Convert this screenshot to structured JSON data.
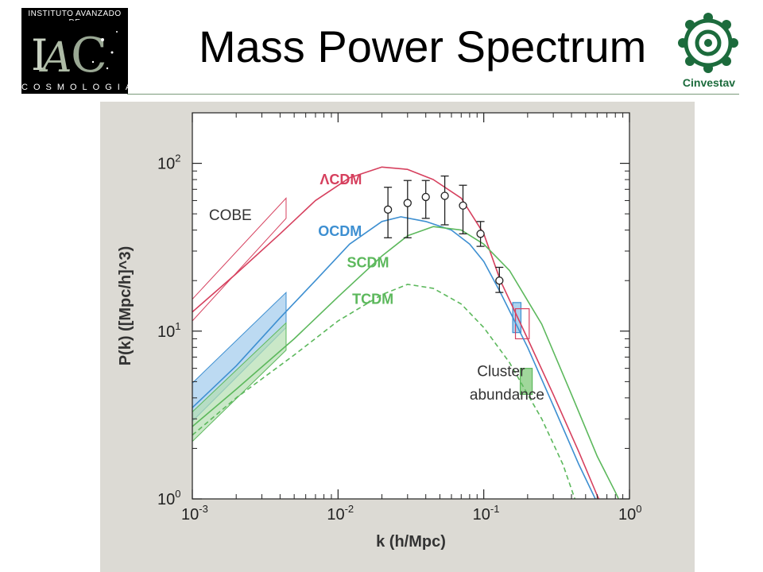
{
  "slide": {
    "title": "Mass Power Spectrum",
    "logo_left_top": "INSTITUTO AVANZADO DE",
    "logo_left_bottom": "COSMOLOGIA",
    "logo_right_label": "Cinvestav"
  },
  "colors": {
    "lcdm": "#d6405e",
    "ocdm": "#3d8fd1",
    "scdm": "#5cb85c",
    "tcdm": "#5cb85c",
    "cinvestav_green": "#1c6b3c",
    "figure_bg": "#dcdad4"
  },
  "chart_data": {
    "type": "line",
    "title": "",
    "xlabel": "k (h/Mpc)",
    "ylabel": "P(k) ([Mpc/h]^3)",
    "xscale": "log",
    "yscale": "log",
    "xlim": [
      0.001,
      1.0
    ],
    "ylim": [
      1.0,
      200
    ],
    "xticks": [
      {
        "value": 0.001,
        "label_base": "10",
        "label_exp": "-3"
      },
      {
        "value": 0.01,
        "label_base": "10",
        "label_exp": "-2"
      },
      {
        "value": 0.1,
        "label_base": "10",
        "label_exp": "-1"
      },
      {
        "value": 1.0,
        "label_base": "10",
        "label_exp": "0"
      }
    ],
    "yticks": [
      {
        "value": 1,
        "label_base": "10",
        "label_exp": "0"
      },
      {
        "value": 10,
        "label_base": "10",
        "label_exp": "1"
      },
      {
        "value": 100,
        "label_base": "10",
        "label_exp": "2"
      }
    ],
    "series": [
      {
        "name": "ΛCDM",
        "color": "#d6405e",
        "dash": false,
        "points": [
          [
            0.001,
            13.0
          ],
          [
            0.002,
            22
          ],
          [
            0.004,
            38
          ],
          [
            0.007,
            60
          ],
          [
            0.012,
            82
          ],
          [
            0.02,
            95
          ],
          [
            0.03,
            92
          ],
          [
            0.045,
            80
          ],
          [
            0.07,
            62
          ],
          [
            0.1,
            38
          ],
          [
            0.13,
            20
          ],
          [
            0.2,
            9
          ],
          [
            0.3,
            4.2
          ],
          [
            0.45,
            1.9
          ],
          [
            0.6,
            1.05
          ],
          [
            0.7,
            0.8
          ]
        ]
      },
      {
        "name": "OCDM",
        "color": "#3d8fd1",
        "dash": false,
        "points": [
          [
            0.001,
            3.5
          ],
          [
            0.002,
            6.2
          ],
          [
            0.004,
            12
          ],
          [
            0.007,
            20
          ],
          [
            0.012,
            33
          ],
          [
            0.02,
            45
          ],
          [
            0.027,
            48
          ],
          [
            0.04,
            45
          ],
          [
            0.06,
            40
          ],
          [
            0.08,
            33
          ],
          [
            0.1,
            26
          ],
          [
            0.13,
            17
          ],
          [
            0.2,
            8
          ],
          [
            0.3,
            3.6
          ],
          [
            0.45,
            1.6
          ],
          [
            0.6,
            0.95
          ],
          [
            0.7,
            0.8
          ]
        ]
      },
      {
        "name": "SCDM",
        "color": "#5cb85c",
        "dash": false,
        "points": [
          [
            0.001,
            2.7
          ],
          [
            0.002,
            4.5
          ],
          [
            0.005,
            9
          ],
          [
            0.01,
            16
          ],
          [
            0.02,
            28
          ],
          [
            0.03,
            37
          ],
          [
            0.045,
            42
          ],
          [
            0.07,
            40
          ],
          [
            0.1,
            33
          ],
          [
            0.15,
            23
          ],
          [
            0.25,
            11
          ],
          [
            0.4,
            4.2
          ],
          [
            0.6,
            1.8
          ],
          [
            0.8,
            1.1
          ],
          [
            0.95,
            0.8
          ]
        ]
      },
      {
        "name": "TCDM",
        "color": "#5cb85c",
        "dash": true,
        "points": [
          [
            0.001,
            2.4
          ],
          [
            0.002,
            4
          ],
          [
            0.005,
            7.2
          ],
          [
            0.01,
            11.5
          ],
          [
            0.02,
            16.5
          ],
          [
            0.03,
            19
          ],
          [
            0.045,
            18
          ],
          [
            0.07,
            14.5
          ],
          [
            0.1,
            10.5
          ],
          [
            0.15,
            6.5
          ],
          [
            0.25,
            3.0
          ],
          [
            0.35,
            1.6
          ],
          [
            0.45,
            0.85
          ]
        ]
      }
    ],
    "series_labels": [
      {
        "series": "ΛCDM",
        "text": "ΛCDM",
        "x": 0.0075,
        "y": 75
      },
      {
        "series": "OCDM",
        "text": "OCDM",
        "x": 0.0073,
        "y": 37
      },
      {
        "series": "SCDM",
        "text": "SCDM",
        "x": 0.0115,
        "y": 24
      },
      {
        "series": "TCDM",
        "text": "TCDM",
        "x": 0.0125,
        "y": 14.5
      }
    ],
    "data_points": [
      {
        "x": 0.022,
        "y": 53,
        "ylo": 36,
        "yhi": 72
      },
      {
        "x": 0.03,
        "y": 58,
        "ylo": 36,
        "yhi": 79
      },
      {
        "x": 0.04,
        "y": 63,
        "ylo": 47,
        "yhi": 79
      },
      {
        "x": 0.054,
        "y": 64,
        "ylo": 43,
        "yhi": 84
      },
      {
        "x": 0.072,
        "y": 56,
        "ylo": 38,
        "yhi": 74
      },
      {
        "x": 0.095,
        "y": 38,
        "ylo": 32,
        "yhi": 45
      },
      {
        "x": 0.128,
        "y": 20,
        "ylo": 17,
        "yhi": 24
      }
    ],
    "annotations": [
      {
        "name": "cobe-label",
        "text": "COBE",
        "x": 0.0013,
        "y": 46
      },
      {
        "name": "cluster-label-1",
        "text": "Cluster",
        "x": 0.09,
        "y": 5.4
      },
      {
        "name": "cluster-label-2",
        "text": "abundance",
        "x": 0.08,
        "y": 3.9
      }
    ],
    "bands": [
      {
        "name": "cobe-lcdm-band",
        "color": "#d6405e",
        "fill": "none",
        "x": [
          0.001,
          0.0044
        ],
        "y_bottom": [
          11.5,
          47
        ],
        "y_top": [
          15.5,
          62
        ]
      },
      {
        "name": "cobe-ocdm-band",
        "color": "#3d8fd1",
        "fill": "#9fcbec",
        "x": [
          0.001,
          0.0044
        ],
        "y_bottom": [
          2.9,
          10.5
        ],
        "y_top": [
          4.9,
          17
        ]
      },
      {
        "name": "cobe-scdm-band",
        "color": "#5cb85c",
        "fill": "#b4deb0",
        "x": [
          0.001,
          0.0044
        ],
        "y_bottom": [
          2.2,
          7.7
        ],
        "y_top": [
          3.3,
          11.2
        ]
      }
    ],
    "boxes": [
      {
        "name": "cluster-ocdm-box",
        "color": "#3d8fd1",
        "fill": "#9fcbec",
        "x": [
          0.158,
          0.18
        ],
        "y": [
          9.8,
          14.8
        ]
      },
      {
        "name": "cluster-lcdm-box",
        "color": "#d6405e",
        "fill": "none",
        "x": [
          0.165,
          0.205
        ],
        "y": [
          9.0,
          13.6
        ]
      },
      {
        "name": "cluster-legend-box",
        "color": "#5cb85c",
        "fill": "#8fd08a",
        "x": [
          0.178,
          0.215
        ],
        "y": [
          4.2,
          6.0
        ]
      }
    ]
  }
}
